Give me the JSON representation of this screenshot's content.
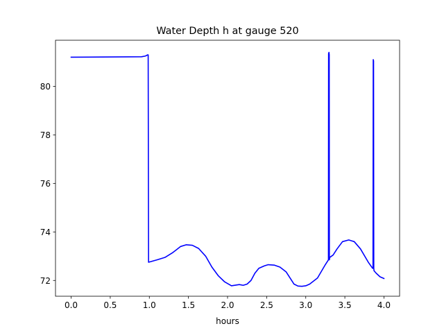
{
  "chart_data": {
    "type": "line",
    "title": "Water Depth h at gauge 520",
    "xlabel": "hours",
    "ylabel": "",
    "xlim": [
      -0.2,
      4.2
    ],
    "ylim": [
      71.35,
      81.9
    ],
    "x_ticks": [
      0.0,
      0.5,
      1.0,
      1.5,
      2.0,
      2.5,
      3.0,
      3.5,
      4.0
    ],
    "x_tick_labels": [
      "0.0",
      "0.5",
      "1.0",
      "1.5",
      "2.0",
      "2.5",
      "3.0",
      "3.5",
      "4.0"
    ],
    "y_ticks": [
      72,
      74,
      76,
      78,
      80
    ],
    "y_tick_labels": [
      "72",
      "74",
      "76",
      "78",
      "80"
    ],
    "grid": false,
    "series": [
      {
        "color": "#0000ff",
        "x": [
          0.0,
          0.9,
          0.95,
          0.98,
          0.985,
          0.99,
          1.1,
          1.2,
          1.3,
          1.4,
          1.47,
          1.55,
          1.63,
          1.72,
          1.8,
          1.88,
          1.96,
          2.05,
          2.15,
          2.2,
          2.25,
          2.3,
          2.35,
          2.4,
          2.47,
          2.52,
          2.6,
          2.67,
          2.75,
          2.85,
          2.9,
          2.95,
          3.0,
          3.05,
          3.15,
          3.25,
          3.29,
          3.292,
          3.297,
          3.3,
          3.302,
          3.307,
          3.35,
          3.4,
          3.47,
          3.55,
          3.62,
          3.7,
          3.8,
          3.855,
          3.86,
          3.863,
          3.867,
          3.87,
          3.873,
          3.9,
          3.95,
          4.0
        ],
        "y": [
          81.2,
          81.22,
          81.25,
          81.3,
          81.3,
          72.75,
          72.85,
          72.95,
          73.15,
          73.4,
          73.47,
          73.45,
          73.32,
          73.0,
          72.55,
          72.2,
          71.95,
          71.78,
          71.83,
          71.8,
          71.85,
          72.0,
          72.3,
          72.5,
          72.6,
          72.65,
          72.63,
          72.55,
          72.35,
          71.85,
          71.77,
          71.76,
          71.78,
          71.85,
          72.1,
          72.65,
          72.85,
          81.35,
          81.4,
          81.3,
          72.85,
          72.95,
          73.05,
          73.3,
          73.6,
          73.67,
          73.6,
          73.3,
          72.75,
          72.5,
          72.5,
          81.1,
          81.05,
          72.5,
          72.4,
          72.3,
          72.15,
          72.08
        ]
      }
    ]
  }
}
